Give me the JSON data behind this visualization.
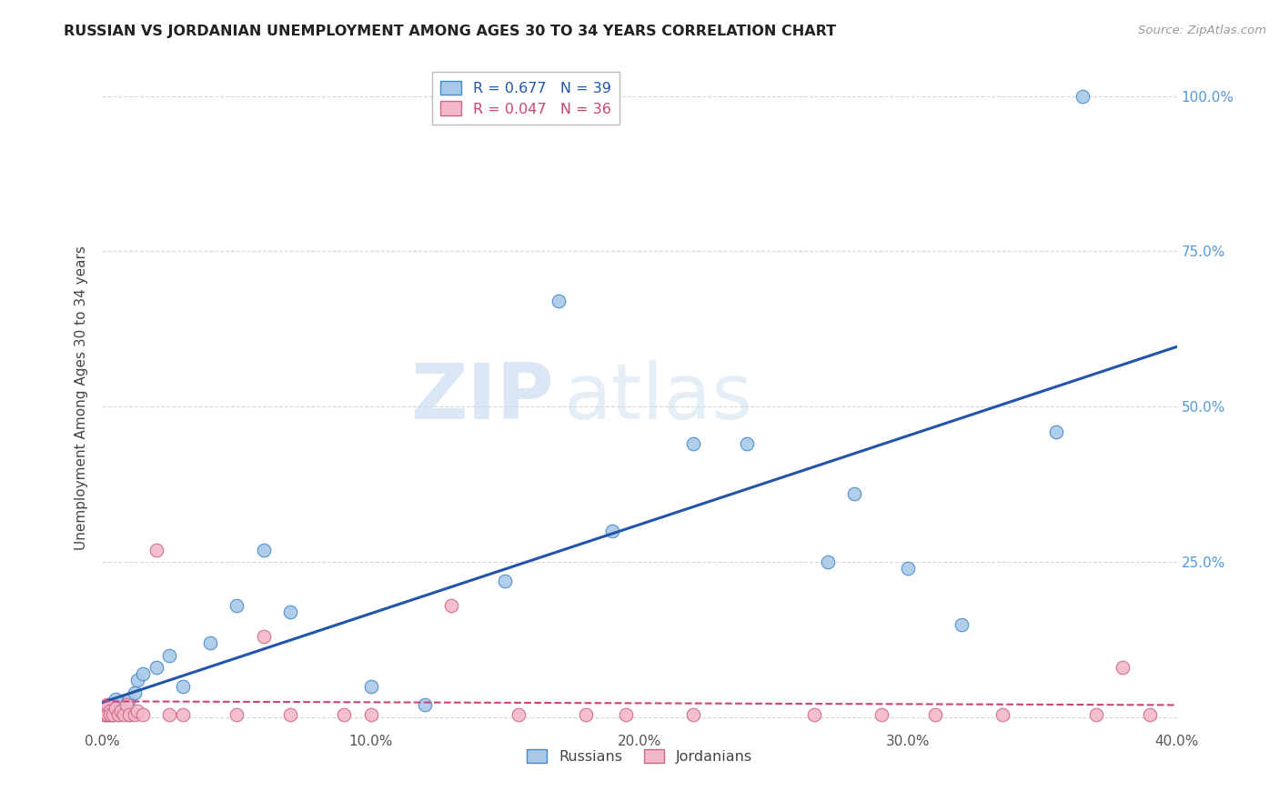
{
  "title": "RUSSIAN VS JORDANIAN UNEMPLOYMENT AMONG AGES 30 TO 34 YEARS CORRELATION CHART",
  "source": "Source: ZipAtlas.com",
  "ylabel": "Unemployment Among Ages 30 to 34 years",
  "xlim": [
    0.0,
    0.4
  ],
  "ylim": [
    -0.02,
    1.05
  ],
  "xticks": [
    0.0,
    0.1,
    0.2,
    0.3,
    0.4
  ],
  "yticks": [
    0.0,
    0.25,
    0.5,
    0.75,
    1.0
  ],
  "xticklabels": [
    "0.0%",
    "10.0%",
    "20.0%",
    "30.0%",
    "40.0%"
  ],
  "yticklabels_right": [
    "",
    "25.0%",
    "50.0%",
    "75.0%",
    "100.0%"
  ],
  "russian_R": 0.677,
  "russian_N": 39,
  "jordanian_R": 0.047,
  "jordanian_N": 36,
  "russian_color": "#a8c8e8",
  "jordanian_color": "#f4b8c8",
  "russian_edge_color": "#4488cc",
  "jordanian_edge_color": "#cc6688",
  "russian_line_color": "#2255aa",
  "jordanian_line_color": "#cc4477",
  "watermark_zip": "ZIP",
  "watermark_atlas": "atlas",
  "background_color": "#ffffff",
  "russians_x": [
    0.001,
    0.001,
    0.002,
    0.002,
    0.003,
    0.003,
    0.004,
    0.004,
    0.005,
    0.005,
    0.006,
    0.007,
    0.008,
    0.009,
    0.01,
    0.01,
    0.012,
    0.013,
    0.015,
    0.02,
    0.025,
    0.03,
    0.04,
    0.05,
    0.06,
    0.07,
    0.1,
    0.12,
    0.15,
    0.17,
    0.19,
    0.22,
    0.24,
    0.27,
    0.28,
    0.3,
    0.32,
    0.355,
    0.365
  ],
  "russians_y": [
    0.005,
    0.01,
    0.005,
    0.02,
    0.005,
    0.01,
    0.02,
    0.005,
    0.03,
    0.01,
    0.005,
    0.01,
    0.015,
    0.02,
    0.005,
    0.03,
    0.04,
    0.06,
    0.07,
    0.08,
    0.1,
    0.05,
    0.12,
    0.18,
    0.27,
    0.17,
    0.05,
    0.02,
    0.22,
    0.67,
    0.3,
    0.44,
    0.44,
    0.25,
    0.36,
    0.24,
    0.15,
    0.46,
    1.0
  ],
  "jordanians_x": [
    0.001,
    0.001,
    0.002,
    0.002,
    0.003,
    0.003,
    0.004,
    0.005,
    0.006,
    0.007,
    0.008,
    0.009,
    0.01,
    0.012,
    0.013,
    0.015,
    0.02,
    0.025,
    0.03,
    0.05,
    0.06,
    0.07,
    0.09,
    0.1,
    0.13,
    0.155,
    0.18,
    0.195,
    0.22,
    0.265,
    0.29,
    0.31,
    0.335,
    0.37,
    0.38,
    0.39
  ],
  "jordanians_y": [
    0.005,
    0.01,
    0.005,
    0.02,
    0.01,
    0.005,
    0.005,
    0.015,
    0.005,
    0.01,
    0.005,
    0.02,
    0.005,
    0.005,
    0.01,
    0.005,
    0.27,
    0.005,
    0.005,
    0.005,
    0.13,
    0.005,
    0.005,
    0.005,
    0.18,
    0.005,
    0.005,
    0.005,
    0.005,
    0.005,
    0.005,
    0.005,
    0.005,
    0.005,
    0.08,
    0.005
  ]
}
